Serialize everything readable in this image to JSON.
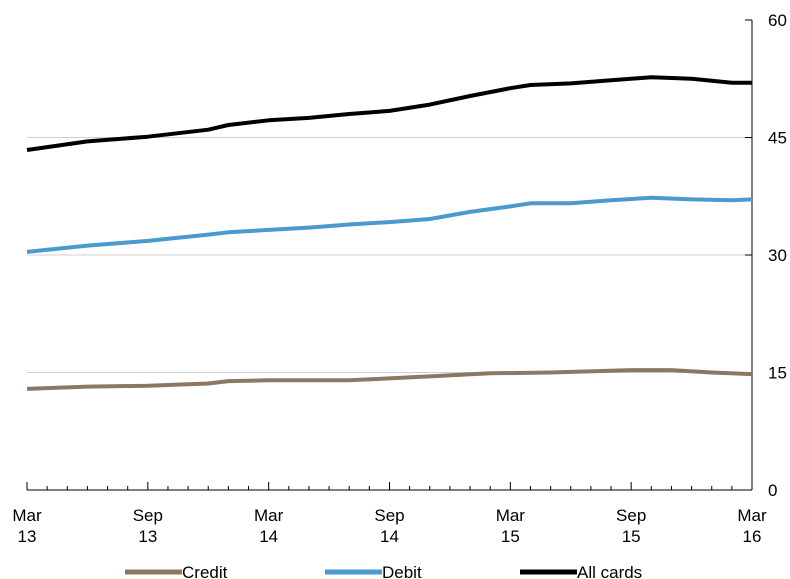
{
  "chart_data": {
    "type": "line",
    "title": "",
    "xlabel": "",
    "ylabel": "",
    "ylim": [
      0,
      60
    ],
    "yticks": [
      "0",
      "15",
      "30",
      "45",
      "60"
    ],
    "y_axis_side": "right",
    "x_ticks": [
      {
        "m": 0,
        "line1": "Mar",
        "line2": "13"
      },
      {
        "m": 6,
        "line1": "Sep",
        "line2": "13"
      },
      {
        "m": 12,
        "line1": "Mar",
        "line2": "14"
      },
      {
        "m": 18,
        "line1": "Sep",
        "line2": "14"
      },
      {
        "m": 24,
        "line1": "Mar",
        "line2": "15"
      },
      {
        "m": 30,
        "line1": "Sep",
        "line2": "15"
      },
      {
        "m": 36,
        "line1": "Mar",
        "line2": "16"
      }
    ],
    "grid": "horizontal",
    "legend_position": "bottom",
    "series": [
      {
        "name": "Credit",
        "color": "#8B7762",
        "points": [
          [
            0,
            12.9
          ],
          [
            3,
            13.2
          ],
          [
            6,
            13.3
          ],
          [
            9,
            13.6
          ],
          [
            10,
            13.9
          ],
          [
            12,
            14.0
          ],
          [
            16,
            14.0
          ],
          [
            20,
            14.5
          ],
          [
            23,
            14.9
          ],
          [
            26,
            15.0
          ],
          [
            30,
            15.3
          ],
          [
            32,
            15.3
          ],
          [
            34,
            15.0
          ],
          [
            36,
            14.8
          ]
        ]
      },
      {
        "name": "Debit",
        "color": "#4A9AD0",
        "points": [
          [
            0,
            30.4
          ],
          [
            3,
            31.2
          ],
          [
            6,
            31.8
          ],
          [
            9,
            32.6
          ],
          [
            10,
            32.9
          ],
          [
            12,
            33.2
          ],
          [
            14,
            33.5
          ],
          [
            16,
            33.9
          ],
          [
            18,
            34.2
          ],
          [
            20,
            34.6
          ],
          [
            22,
            35.5
          ],
          [
            24,
            36.2
          ],
          [
            25,
            36.6
          ],
          [
            27,
            36.6
          ],
          [
            29,
            37.0
          ],
          [
            31,
            37.3
          ],
          [
            33,
            37.1
          ],
          [
            35,
            37.0
          ],
          [
            36,
            37.1
          ]
        ]
      },
      {
        "name": "All cards",
        "color": "#000000",
        "points": [
          [
            0,
            43.4
          ],
          [
            3,
            44.5
          ],
          [
            6,
            45.1
          ],
          [
            9,
            46.0
          ],
          [
            10,
            46.6
          ],
          [
            12,
            47.2
          ],
          [
            14,
            47.5
          ],
          [
            16,
            48.0
          ],
          [
            18,
            48.4
          ],
          [
            20,
            49.2
          ],
          [
            22,
            50.3
          ],
          [
            24,
            51.3
          ],
          [
            25,
            51.7
          ],
          [
            27,
            51.9
          ],
          [
            29,
            52.3
          ],
          [
            31,
            52.7
          ],
          [
            33,
            52.5
          ],
          [
            35,
            52.0
          ],
          [
            36,
            52.0
          ]
        ]
      }
    ]
  }
}
